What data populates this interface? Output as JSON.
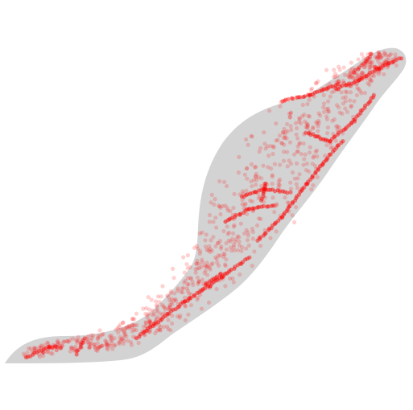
{
  "map": {
    "region_fill": "#d3d3d3",
    "point_color": "#ff0000",
    "point_opacity": 0.18,
    "background": "#ffffff"
  }
}
